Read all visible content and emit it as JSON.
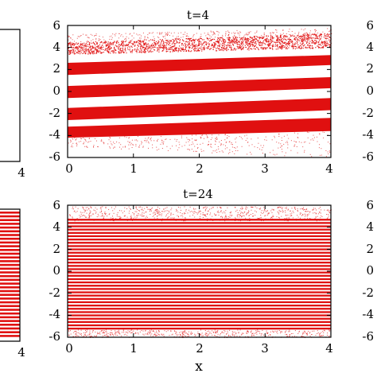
{
  "colors": {
    "particles": "#e01010",
    "axes": "#000000",
    "background": "#ffffff"
  },
  "chart_data": [
    {
      "type": "scatter",
      "panel": "top-center",
      "title": "t=4",
      "xlabel": "",
      "ylabel": "",
      "xlim": [
        0,
        4
      ],
      "ylim": [
        -6,
        6
      ],
      "x_ticks": [
        "0",
        "1",
        "2",
        "3",
        "4"
      ],
      "y_ticks": [
        "6",
        "4",
        "2",
        "0",
        "-2",
        "-4",
        "-6"
      ],
      "description_values": {
        "solid_bands": [
          {
            "y_at_x0": [
              1.5,
              2.6
            ],
            "y_at_x4": [
              2.4,
              3.3
            ]
          },
          {
            "y_at_x0": [
              -0.6,
              0.5
            ],
            "y_at_x4": [
              0.3,
              1.3
            ]
          },
          {
            "y_at_x0": [
              -2.6,
              -1.5
            ],
            "y_at_x4": [
              -1.7,
              -0.6
            ]
          },
          {
            "y_at_x0": [
              -4.2,
              -3.2
            ],
            "y_at_x4": [
              -3.6,
              -2.4
            ]
          }
        ],
        "dense_top_band": {
          "y_at_x0": [
            3.4,
            4.5
          ],
          "y_at_x4": [
            4.0,
            5.3
          ]
        },
        "sparse_upper_noise": {
          "y_at_x0": [
            4.5,
            5.2
          ],
          "y_at_x4": [
            5.3,
            5.8
          ]
        },
        "sparse_lower_noise": {
          "y_at_x0": [
            -5.0,
            -4.2
          ],
          "y_at_x4": [
            -6.0,
            -3.6
          ]
        }
      }
    },
    {
      "type": "scatter",
      "panel": "bottom-center",
      "title": "t=24",
      "xlabel": "x",
      "ylabel": "",
      "xlim": [
        0,
        4
      ],
      "ylim": [
        -6,
        6
      ],
      "x_ticks": [
        "0",
        "1",
        "2",
        "3",
        "4"
      ],
      "y_ticks": [
        "6",
        "4",
        "2",
        "0",
        "-2",
        "-4",
        "-6"
      ],
      "description_values": {
        "stripe_region": [
          -5.3,
          4.6
        ],
        "stripe_spacing": 0.3,
        "sparse_region": [
          [
            -6.0,
            -5.3
          ],
          [
            4.6,
            5.9
          ]
        ]
      }
    },
    {
      "type": "scatter",
      "panel": "top-left (cropped)",
      "x_ticks": [
        "4"
      ]
    },
    {
      "type": "scatter",
      "panel": "bottom-left (cropped)",
      "x_ticks": [
        "4"
      ]
    },
    {
      "type": "scatter",
      "panel": "top-right (cropped)",
      "y_ticks": [
        "6",
        "4",
        "2",
        "0",
        "-2",
        "-4",
        "-6"
      ]
    },
    {
      "type": "scatter",
      "panel": "bottom-right (cropped)",
      "y_ticks": [
        "6",
        "4",
        "2",
        "0",
        "-2",
        "-4",
        "-6"
      ]
    }
  ]
}
